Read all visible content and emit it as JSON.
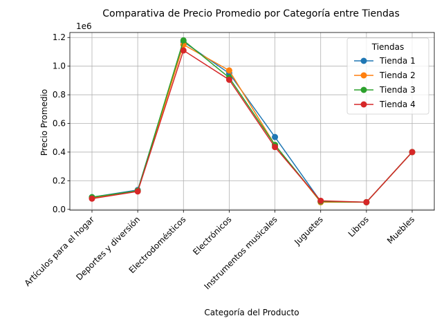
{
  "chart_data": {
    "type": "line",
    "title": "Comparativa de Precio Promedio por Categoría entre Tiendas",
    "xlabel": "Categoría del Producto",
    "ylabel": "Precio Promedio",
    "y_offset_text": "1e6",
    "y_scale_factor": 1000000,
    "ylim": [
      0,
      1200000
    ],
    "yticks": [
      0,
      200000,
      400000,
      600000,
      800000,
      1000000,
      1200000
    ],
    "ytick_labels": [
      "0.0",
      "0.2",
      "0.4",
      "0.6",
      "0.8",
      "1.0",
      "1.2"
    ],
    "grid": true,
    "legend": {
      "title": "Tiendas",
      "position": "top-right"
    },
    "categories": [
      "Artículos para el hogar",
      "Deportes y diversión",
      "Electrodomésticos",
      "Electrónicos",
      "Instrumentos musicales",
      "Juguetes",
      "Libros",
      "Muebles"
    ],
    "series": [
      {
        "name": "Tienda 1",
        "color": "#1f77b4",
        "values": [
          85000,
          135000,
          1170000,
          950000,
          505000,
          55000,
          50000,
          400000
        ]
      },
      {
        "name": "Tienda 2",
        "color": "#ff7f0e",
        "values": [
          80000,
          130000,
          1150000,
          970000,
          450000,
          50000,
          50000,
          400000
        ]
      },
      {
        "name": "Tienda 3",
        "color": "#2ca02c",
        "values": [
          85000,
          130000,
          1180000,
          920000,
          450000,
          55000,
          50000,
          400000
        ]
      },
      {
        "name": "Tienda 4",
        "color": "#d62728",
        "values": [
          75000,
          125000,
          1110000,
          905000,
          435000,
          60000,
          50000,
          400000
        ]
      }
    ]
  }
}
